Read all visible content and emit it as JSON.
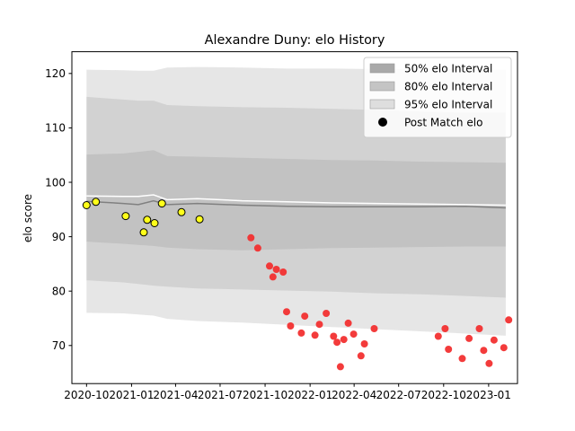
{
  "chart_data": {
    "type": "scatter",
    "title": "Alexandre Duny: elo History",
    "xlabel": "",
    "ylabel": "elo score",
    "xlim": [
      "2020-09-01",
      "2023-03-01"
    ],
    "ylim": [
      63,
      124
    ],
    "x_ticks": [
      "2020-10",
      "2021-01",
      "2021-04",
      "2021-07",
      "2021-10",
      "2022-01",
      "2022-04",
      "2022-07",
      "2022-10",
      "2023-01"
    ],
    "y_ticks": [
      70,
      80,
      90,
      100,
      110,
      120
    ],
    "grid": false,
    "legend_position": "top-right",
    "legend": [
      {
        "label": "50% elo Interval",
        "kind": "band",
        "color": "#a9a9a9"
      },
      {
        "label": "80% elo Interval",
        "kind": "band",
        "color": "#c4c4c4"
      },
      {
        "label": "95% elo Interval",
        "kind": "band",
        "color": "#dedede"
      },
      {
        "label": "Post Match elo",
        "kind": "marker",
        "color": "#000000"
      }
    ],
    "band_x": [
      "2020-10-01",
      "2020-12-15",
      "2021-01-15",
      "2021-02-15",
      "2021-03-15",
      "2021-05-15",
      "2021-08-15",
      "2021-11-15",
      "2022-02-15",
      "2022-05-15",
      "2022-08-15",
      "2022-11-15",
      "2023-02-05"
    ],
    "band95": {
      "upper": [
        120.7,
        120.6,
        120.5,
        120.5,
        121.1,
        121.2,
        121.1,
        120.9,
        120.9,
        120.8,
        120.8,
        120.8,
        120.7
      ],
      "lower": [
        76.0,
        75.9,
        75.7,
        75.5,
        74.9,
        74.5,
        74.2,
        73.8,
        73.4,
        73.0,
        72.6,
        72.2,
        71.8
      ]
    },
    "band80": {
      "upper": [
        115.7,
        115.2,
        115.0,
        115.0,
        114.2,
        114.0,
        113.8,
        113.7,
        113.5,
        113.3,
        113.0,
        112.8,
        112.8
      ],
      "lower": [
        82.0,
        81.6,
        81.3,
        81.0,
        80.8,
        80.5,
        80.3,
        80.1,
        79.9,
        79.6,
        79.4,
        79.1,
        78.8
      ]
    },
    "band50": {
      "upper": [
        105.1,
        105.3,
        105.6,
        105.9,
        104.8,
        104.7,
        104.5,
        104.3,
        104.1,
        104.0,
        103.8,
        103.7,
        103.6
      ],
      "lower": [
        89.1,
        88.7,
        88.5,
        88.3,
        88.0,
        87.7,
        87.5,
        87.7,
        87.9,
        88.0,
        88.1,
        88.2,
        88.2
      ]
    },
    "median_line": [
      96.5,
      96.1,
      95.9,
      96.6,
      95.9,
      96.1,
      95.8,
      95.6,
      95.5,
      95.5,
      95.5,
      95.6,
      95.3
    ],
    "mean_line": [
      97.5,
      97.4,
      97.4,
      97.7,
      96.8,
      97.0,
      96.6,
      96.4,
      96.2,
      96.1,
      96.0,
      95.9,
      95.8
    ],
    "series": [
      {
        "marker_color": "#ffff1a",
        "edge_color": "#000000",
        "points": [
          {
            "x": "2020-10-01",
            "y": 95.8
          },
          {
            "x": "2020-10-20",
            "y": 96.4
          },
          {
            "x": "2020-12-20",
            "y": 93.8
          },
          {
            "x": "2021-01-26",
            "y": 90.8
          },
          {
            "x": "2021-02-02",
            "y": 93.1
          },
          {
            "x": "2021-02-17",
            "y": 92.5
          },
          {
            "x": "2021-03-04",
            "y": 96.1
          },
          {
            "x": "2021-04-13",
            "y": 94.5
          },
          {
            "x": "2021-05-20",
            "y": 93.2
          }
        ]
      },
      {
        "marker_color": "#f23030",
        "edge_color": "",
        "points": [
          {
            "x": "2021-09-02",
            "y": 89.8
          },
          {
            "x": "2021-09-16",
            "y": 87.9
          },
          {
            "x": "2021-10-10",
            "y": 84.6
          },
          {
            "x": "2021-10-17",
            "y": 82.6
          },
          {
            "x": "2021-10-24",
            "y": 84.0
          },
          {
            "x": "2021-11-07",
            "y": 83.5
          },
          {
            "x": "2021-11-14",
            "y": 76.2
          },
          {
            "x": "2021-11-22",
            "y": 73.6
          },
          {
            "x": "2021-12-14",
            "y": 72.3
          },
          {
            "x": "2021-12-21",
            "y": 75.4
          },
          {
            "x": "2022-01-11",
            "y": 71.9
          },
          {
            "x": "2022-01-20",
            "y": 73.9
          },
          {
            "x": "2022-02-03",
            "y": 75.9
          },
          {
            "x": "2022-02-18",
            "y": 71.7
          },
          {
            "x": "2022-02-25",
            "y": 70.6
          },
          {
            "x": "2022-03-04",
            "y": 66.1
          },
          {
            "x": "2022-03-11",
            "y": 71.1
          },
          {
            "x": "2022-03-20",
            "y": 74.1
          },
          {
            "x": "2022-03-31",
            "y": 72.1
          },
          {
            "x": "2022-04-15",
            "y": 68.1
          },
          {
            "x": "2022-04-22",
            "y": 70.3
          },
          {
            "x": "2022-05-12",
            "y": 73.1
          },
          {
            "x": "2022-09-20",
            "y": 71.7
          },
          {
            "x": "2022-10-04",
            "y": 73.1
          },
          {
            "x": "2022-10-11",
            "y": 69.3
          },
          {
            "x": "2022-11-08",
            "y": 67.6
          },
          {
            "x": "2022-11-22",
            "y": 71.3
          },
          {
            "x": "2022-12-13",
            "y": 73.1
          },
          {
            "x": "2022-12-22",
            "y": 69.1
          },
          {
            "x": "2023-01-02",
            "y": 66.7
          },
          {
            "x": "2023-01-12",
            "y": 71.0
          },
          {
            "x": "2023-02-01",
            "y": 69.6
          },
          {
            "x": "2023-02-11",
            "y": 74.7
          }
        ]
      }
    ]
  }
}
